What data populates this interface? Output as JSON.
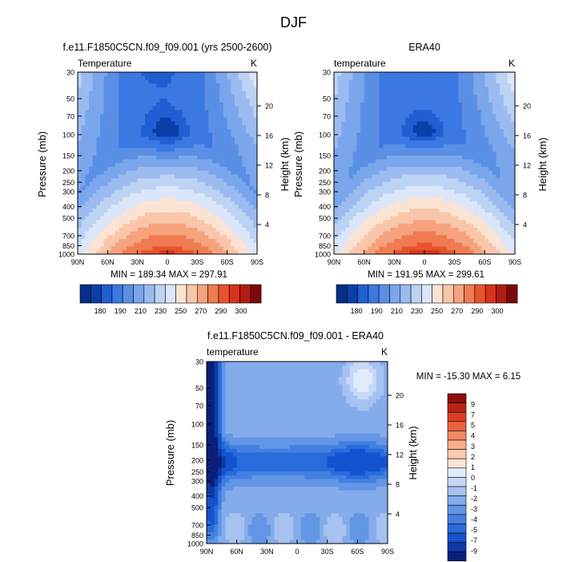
{
  "figure": {
    "title": "DJF"
  },
  "colors": {
    "temperature_palette": [
      "#052f86",
      "#0a3fa8",
      "#1f5fd2",
      "#3c78e2",
      "#5b8fe6",
      "#7aa6ec",
      "#9bbbf0",
      "#bcd3f4",
      "#dbe6f8",
      "#fbe3d3",
      "#f9c6aa",
      "#f6a27c",
      "#f07a51",
      "#e8532f",
      "#d8331b",
      "#b31c12",
      "#7d0a0a"
    ],
    "difference_palette": [
      "#0a1f7a",
      "#0c3aa8",
      "#1452cf",
      "#2a6bdc",
      "#4580e0",
      "#6396e6",
      "#84aceb",
      "#a6c2f0",
      "#c6d8f6",
      "#e2ebfa",
      "#fde5d6",
      "#fbcbb1",
      "#f8ad88",
      "#f28a61",
      "#ea623d",
      "#db3f24",
      "#bb2414",
      "#8c0e0c"
    ]
  },
  "chart_data": [
    {
      "type": "heatmap",
      "title": "f.e11.F1850C5CN.f09_f09.001 (yrs 2500-2600)",
      "left_label": "Temperature",
      "unit_label": "K",
      "ylabel": "Pressure (mb)",
      "right_ylabel": "Height (km)",
      "x_tick_labels": [
        "90N",
        "60N",
        "30N",
        "0",
        "30S",
        "60S",
        "90S"
      ],
      "x_range": [
        90,
        -90
      ],
      "pressure_ticks": [
        30,
        50,
        70,
        100,
        150,
        200,
        250,
        300,
        400,
        500,
        700,
        850,
        1000
      ],
      "pressure_range": [
        30,
        1000
      ],
      "height_ticks": [
        4,
        8,
        12,
        16,
        20
      ],
      "min_max_text": "MIN = 189.34   MAX = 297.91",
      "min": 189.34,
      "max": 297.91,
      "colorbar_labels": [
        "180",
        "190",
        "210",
        "230",
        "250",
        "270",
        "290",
        "300"
      ]
    },
    {
      "type": "heatmap",
      "title": "ERA40",
      "left_label": "temperature",
      "unit_label": "K",
      "ylabel": "Pressure (mb)",
      "right_ylabel": "Height (km)",
      "x_tick_labels": [
        "90N",
        "60N",
        "30N",
        "0",
        "30S",
        "60S",
        "90S"
      ],
      "x_range": [
        90,
        -90
      ],
      "pressure_ticks": [
        30,
        50,
        70,
        100,
        150,
        200,
        250,
        300,
        400,
        500,
        700,
        850,
        1000
      ],
      "pressure_range": [
        30,
        1000
      ],
      "height_ticks": [
        4,
        8,
        12,
        16,
        20
      ],
      "min_max_text": "MIN = 191.95   MAX = 299.61",
      "min": 191.95,
      "max": 299.61,
      "colorbar_labels": [
        "180",
        "190",
        "210",
        "230",
        "250",
        "270",
        "290",
        "300"
      ]
    },
    {
      "type": "heatmap",
      "title": "f.e11.F1850C5CN.f09_f09.001 - ERA40",
      "left_label": "temperature",
      "unit_label": "K",
      "ylabel": "Pressure (mb)",
      "right_ylabel": "Height (km)",
      "x_tick_labels": [
        "90N",
        "60N",
        "30N",
        "0",
        "30S",
        "60S",
        "90S"
      ],
      "x_range": [
        90,
        -90
      ],
      "pressure_ticks": [
        30,
        50,
        70,
        100,
        150,
        200,
        250,
        300,
        400,
        500,
        700,
        850,
        1000
      ],
      "pressure_range": [
        30,
        1000
      ],
      "height_ticks": [
        4,
        8,
        12,
        16,
        20
      ],
      "min_max_text": "MIN = -15.30   MAX =   6.15",
      "min": -15.3,
      "max": 6.15,
      "colorbar_labels": [
        "9",
        "7",
        "5",
        "4",
        "3",
        "2",
        "1",
        "0",
        "-1",
        "-2",
        "-3",
        "-4",
        "-5",
        "-7",
        "-9"
      ]
    }
  ]
}
